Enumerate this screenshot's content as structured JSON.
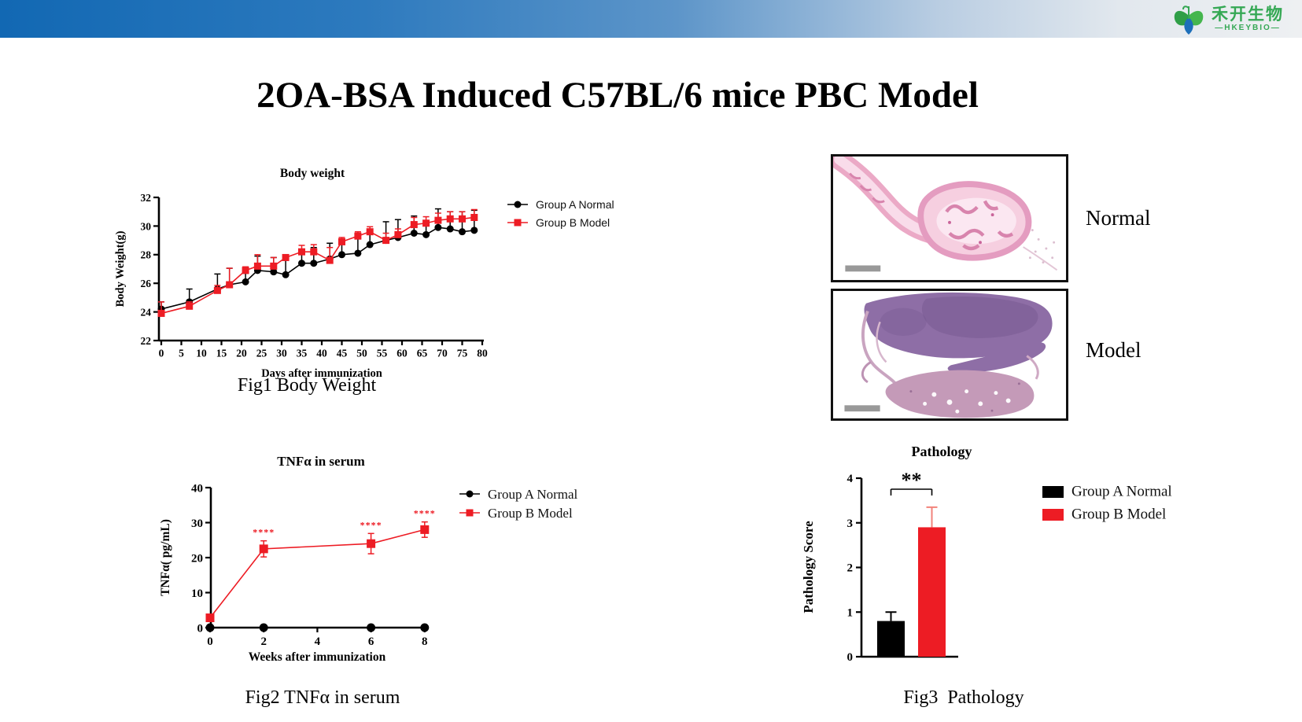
{
  "slide": {
    "title": "2OA-BSA Induced C57BL/6 mice PBC Model"
  },
  "logo": {
    "name_cn": "禾开生物",
    "name_en": "—HKEYBIO—",
    "green": "#35a854",
    "blue": "#1d6fba"
  },
  "histology": {
    "normal_label": "Normal",
    "model_label": "Model"
  },
  "figures": {
    "fig1": {
      "caption": "Fig1 Body Weight"
    },
    "fig2": {
      "caption": "Fig2 TNFα in serum"
    },
    "fig3": {
      "caption": "Fig3  Pathology"
    }
  },
  "chart_data": [
    {
      "id": "body-weight",
      "type": "line",
      "title": "Body weight",
      "xlabel": "Days after immunization",
      "ylabel": "Body Weight(g)",
      "xlim": [
        0,
        80
      ],
      "ylim": [
        22,
        32
      ],
      "xticks": [
        0,
        5,
        10,
        15,
        20,
        25,
        30,
        35,
        40,
        45,
        50,
        55,
        60,
        65,
        70,
        75,
        80
      ],
      "yticks": [
        22,
        24,
        26,
        28,
        30,
        32
      ],
      "x": [
        0,
        7,
        14,
        17,
        21,
        24,
        28,
        31,
        35,
        38,
        42,
        45,
        49,
        52,
        56,
        59,
        63,
        66,
        69,
        72,
        75,
        78
      ],
      "series": [
        {
          "name": "Group A Normal",
          "color": "#000000",
          "marker": "circle",
          "values": [
            24.2,
            24.7,
            25.6,
            25.9,
            26.1,
            26.9,
            26.8,
            26.6,
            27.4,
            27.4,
            27.7,
            28.0,
            28.1,
            28.7,
            29.0,
            29.2,
            29.5,
            29.4,
            29.9,
            29.8,
            29.6,
            29.7
          ],
          "errors": [
            0.5,
            0.9,
            1.05,
            1.15,
            0.6,
            1.0,
            1.0,
            1.05,
            0.85,
            1.1,
            1.1,
            0.75,
            1.0,
            0.75,
            1.3,
            1.25,
            1.2,
            0.9,
            1.3,
            1.2,
            1.4,
            1.4
          ]
        },
        {
          "name": "Group B Model",
          "color": "#ed1c24",
          "marker": "square",
          "values": [
            23.9,
            24.4,
            25.5,
            25.9,
            26.9,
            27.2,
            27.2,
            27.8,
            28.2,
            28.2,
            27.6,
            28.9,
            29.3,
            29.6,
            29.0,
            29.4,
            30.1,
            30.2,
            30.4,
            30.5,
            30.5,
            30.6
          ],
          "errors": [
            0.8,
            0.3,
            0.35,
            1.15,
            0.25,
            0.8,
            0.6,
            0.2,
            0.45,
            0.5,
            0.9,
            0.3,
            0.3,
            0.35,
            0.5,
            0.4,
            0.5,
            0.45,
            0.5,
            0.5,
            0.5,
            0.55
          ]
        }
      ]
    },
    {
      "id": "tnfa-serum",
      "type": "line",
      "title": "TNFα in serum",
      "xlabel": "Weeks after immunization",
      "ylabel": "TNFα( pg/mL)",
      "xlim": [
        0,
        8
      ],
      "ylim": [
        0,
        40
      ],
      "xticks": [
        0,
        2,
        4,
        6,
        8
      ],
      "yticks": [
        0,
        10,
        20,
        30,
        40
      ],
      "x": [
        0,
        2,
        6,
        8
      ],
      "series": [
        {
          "name": "Group A Normal",
          "color": "#000000",
          "marker": "circle",
          "values": [
            0,
            0,
            0,
            0
          ],
          "errors": [
            0,
            0,
            0,
            0
          ]
        },
        {
          "name": "Group B Model",
          "color": "#ed1c24",
          "marker": "square",
          "values": [
            2.8,
            22.5,
            24,
            28
          ],
          "errors": [
            1.0,
            2.3,
            2.9,
            2.2
          ],
          "annotations": [
            "",
            "****",
            "****",
            "****"
          ]
        }
      ]
    },
    {
      "id": "pathology",
      "type": "bar",
      "title": "Pathology",
      "ylabel": "Pathology Score",
      "ylim": [
        0,
        4
      ],
      "yticks": [
        0,
        1,
        2,
        3,
        4
      ],
      "categories": [
        "Group A Normal",
        "Group B Model"
      ],
      "values": [
        0.8,
        2.9
      ],
      "errors": [
        0.2,
        0.45
      ],
      "colors": [
        "#000000",
        "#ed1c24"
      ],
      "error_colors": [
        "#000000",
        "#f2837b"
      ],
      "significance": "**"
    }
  ]
}
